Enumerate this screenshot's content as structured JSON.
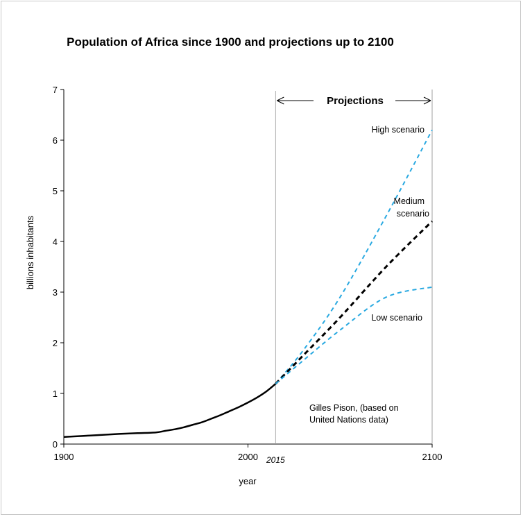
{
  "chart_data": {
    "type": "line",
    "title": "Population of Africa since 1900 and projections up to 2100",
    "xlabel": "year",
    "ylabel": "billions inhabitants",
    "xlim": [
      1900,
      2100
    ],
    "ylim": [
      0,
      7
    ],
    "x_ticks": [
      "1900",
      "2000",
      "2100"
    ],
    "y_ticks": [
      "0",
      "1",
      "2",
      "3",
      "4",
      "5",
      "6",
      "7"
    ],
    "grid": false,
    "projection_marker": {
      "year": 2015,
      "label": "2015"
    },
    "projections_label": "Projections",
    "series": [
      {
        "key": "historical",
        "style": "solid",
        "color": "#000000",
        "x": [
          1900,
          1910,
          1920,
          1930,
          1940,
          1950,
          1955,
          1960,
          1965,
          1970,
          1975,
          1980,
          1985,
          1990,
          1995,
          2000,
          2005,
          2010,
          2015
        ],
        "y": [
          0.14,
          0.16,
          0.18,
          0.2,
          0.215,
          0.23,
          0.26,
          0.29,
          0.33,
          0.38,
          0.43,
          0.5,
          0.57,
          0.65,
          0.73,
          0.82,
          0.92,
          1.04,
          1.19
        ]
      },
      {
        "key": "high",
        "name": "High scenario",
        "style": "dashed",
        "color": "#29a9e1",
        "x": [
          2015,
          2030,
          2050,
          2075,
          2100
        ],
        "y": [
          1.19,
          1.85,
          2.9,
          4.5,
          6.2
        ]
      },
      {
        "key": "medium",
        "name": "Medium scenario",
        "style": "dashed",
        "color": "#000000",
        "x": [
          2015,
          2030,
          2050,
          2075,
          2100
        ],
        "y": [
          1.19,
          1.75,
          2.5,
          3.5,
          4.4
        ]
      },
      {
        "key": "low",
        "name": "Low scenario",
        "style": "dashed",
        "color": "#29a9e1",
        "x": [
          2015,
          2030,
          2050,
          2075,
          2100
        ],
        "y": [
          1.19,
          1.65,
          2.25,
          2.9,
          3.1
        ]
      }
    ],
    "annotations": {
      "high": "High scenario",
      "medium_line1": "Medium",
      "medium_line2": "scenario",
      "low": "Low scenario",
      "source_line1": "Gilles Pison, (based on",
      "source_line2": "United Nations data)"
    }
  }
}
